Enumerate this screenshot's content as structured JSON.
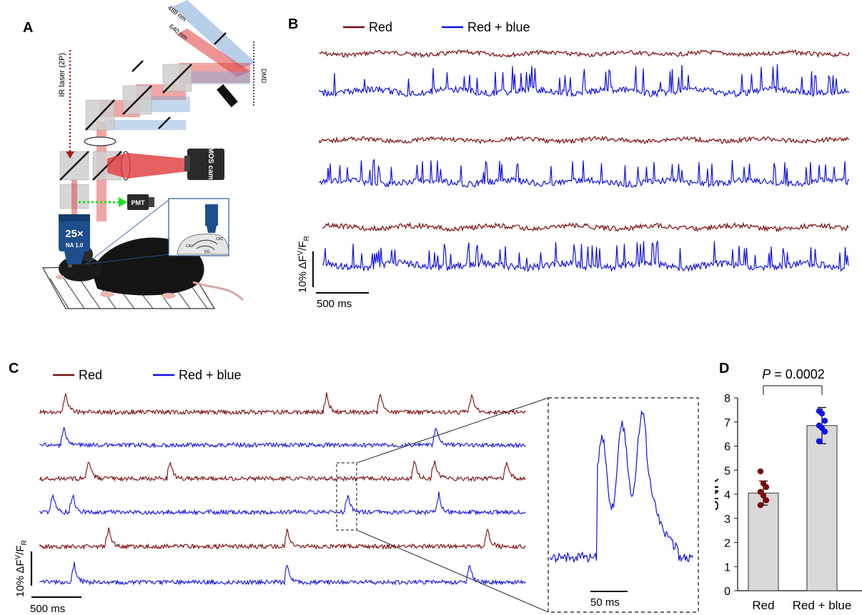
{
  "panels": {
    "A": {
      "letter": "A",
      "labels": {
        "ir_laser": "IR laser (2P)",
        "wl_488": "488 nm",
        "wl_640": "640 nm",
        "dmd": "DMD",
        "camera": "sCMOS camera",
        "pmt": "PMT",
        "objective_mag": "25×",
        "objective_na": "NA 1.0",
        "ca1": "CA1",
        "ca3": "CA3",
        "dg": "DG"
      }
    },
    "B": {
      "letter": "B",
      "legend": [
        "Red",
        "Red + blue"
      ],
      "scale_y_label": "10% ΔF",
      "scale_y_sup": "V",
      "scale_y_div": "/F",
      "scale_y_sub": "R",
      "scale_x_label": "500 ms"
    },
    "C": {
      "letter": "C",
      "legend": [
        "Red",
        "Red + blue"
      ],
      "scale_y_label": "10% ΔF",
      "scale_y_sup": "V",
      "scale_y_div": "/F",
      "scale_y_sub": "R",
      "scale_x_label": "500 ms",
      "inset_scale_label": "50 ms"
    },
    "D": {
      "letter": "D",
      "p_label": "P",
      "p_value": " = 0.0002"
    }
  },
  "colors": {
    "red": "#7a0a0a",
    "blue": "#1010e8",
    "bar_fill": "#d9d9d9",
    "green_dotted": "#22dd22",
    "ir_dotted": "#a02020",
    "beam_red": "#e03a3a",
    "beam_blue": "#7ea7d8"
  },
  "chart_data": [
    {
      "type": "bar",
      "title": "",
      "xlabel": "",
      "ylabel": "SNR",
      "ylim": [
        0,
        8
      ],
      "yticks": [
        0,
        1,
        2,
        3,
        4,
        5,
        6,
        7,
        8
      ],
      "categories": [
        "Red",
        "Red + blue"
      ],
      "values": [
        4.05,
        6.85
      ],
      "errors": [
        0.5,
        0.75
      ],
      "points": [
        [
          4.95,
          4.45,
          4.3,
          4.1,
          3.95,
          3.75,
          3.55
        ],
        [
          7.45,
          7.35,
          7.05,
          6.85,
          6.75,
          6.6,
          6.2
        ]
      ]
    }
  ]
}
